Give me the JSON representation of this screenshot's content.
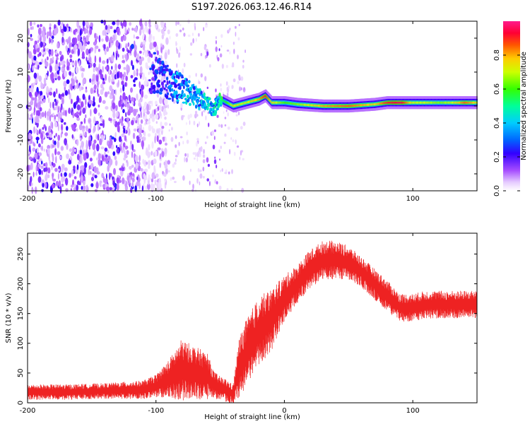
{
  "title": "S197.2026.063.12.46.R14",
  "chart_data": [
    {
      "type": "heatmap",
      "name": "spectrogram",
      "xlabel": "Height of straight line (km)",
      "ylabel": "Frequency (Hz)",
      "xlim": [
        -200,
        150
      ],
      "ylim": [
        -25,
        25
      ],
      "xticks": [
        -200,
        -100,
        0,
        100
      ],
      "yticks": [
        -20,
        -10,
        0,
        10,
        20
      ],
      "colorbar": {
        "label": "Normalized spectral amplitude",
        "range": [
          0.0,
          1.0
        ],
        "ticks": [
          0.0,
          0.2,
          0.4,
          0.6,
          0.8
        ],
        "tick_labels": [
          "0.0",
          "0.2",
          "0.4",
          "0.6",
          "0.8"
        ]
      },
      "noise_region_km": [
        -200,
        -95
      ],
      "signal_track": {
        "x": [
          -100,
          -90,
          -80,
          -70,
          -60,
          -55,
          -50,
          -45,
          -40,
          -35,
          -30,
          -20,
          -15,
          -10,
          0,
          10,
          30,
          50,
          70,
          80,
          90,
          100,
          110,
          120,
          130,
          140,
          150
        ],
        "freq_hz": [
          10,
          7,
          5,
          3,
          1,
          -1,
          2,
          1,
          0,
          0.5,
          1,
          2,
          3,
          1,
          1,
          0.5,
          0,
          0,
          0.5,
          1,
          1,
          1,
          1,
          1,
          1,
          1,
          1
        ],
        "amplitude": [
          0.25,
          0.3,
          0.4,
          0.4,
          0.45,
          0.45,
          0.5,
          0.6,
          0.75,
          0.7,
          0.7,
          0.8,
          0.9,
          0.75,
          0.6,
          0.65,
          0.8,
          0.85,
          0.75,
          0.9,
          0.95,
          0.7,
          0.7,
          0.65,
          0.7,
          0.85,
          0.75
        ]
      }
    },
    {
      "type": "line",
      "name": "snr",
      "xlabel": "Height of straight line (km)",
      "ylabel": "SNR (10 * v/v)",
      "xlim": [
        -200,
        150
      ],
      "ylim": [
        0,
        285
      ],
      "xticks": [
        -200,
        -100,
        0,
        100
      ],
      "yticks": [
        0,
        50,
        100,
        150,
        200,
        250
      ],
      "color": "#ee2222",
      "envelope": {
        "x": [
          -200,
          -170,
          -140,
          -110,
          -100,
          -90,
          -80,
          -70,
          -60,
          -55,
          -50,
          -45,
          -40,
          -35,
          -30,
          -25,
          -20,
          -10,
          0,
          10,
          20,
          30,
          40,
          50,
          60,
          70,
          80,
          90,
          100,
          110,
          120,
          130,
          140,
          150
        ],
        "mean": [
          18,
          18,
          20,
          22,
          28,
          40,
          55,
          50,
          45,
          30,
          25,
          20,
          15,
          60,
          80,
          100,
          120,
          140,
          175,
          200,
          225,
          240,
          240,
          235,
          220,
          200,
          180,
          160,
          160,
          165,
          165,
          165,
          165,
          165
        ],
        "spread": [
          10,
          10,
          10,
          12,
          15,
          25,
          40,
          35,
          30,
          18,
          15,
          15,
          12,
          40,
          45,
          45,
          45,
          40,
          30,
          25,
          25,
          25,
          25,
          22,
          20,
          20,
          20,
          18,
          18,
          18,
          18,
          18,
          18,
          18
        ]
      }
    }
  ]
}
